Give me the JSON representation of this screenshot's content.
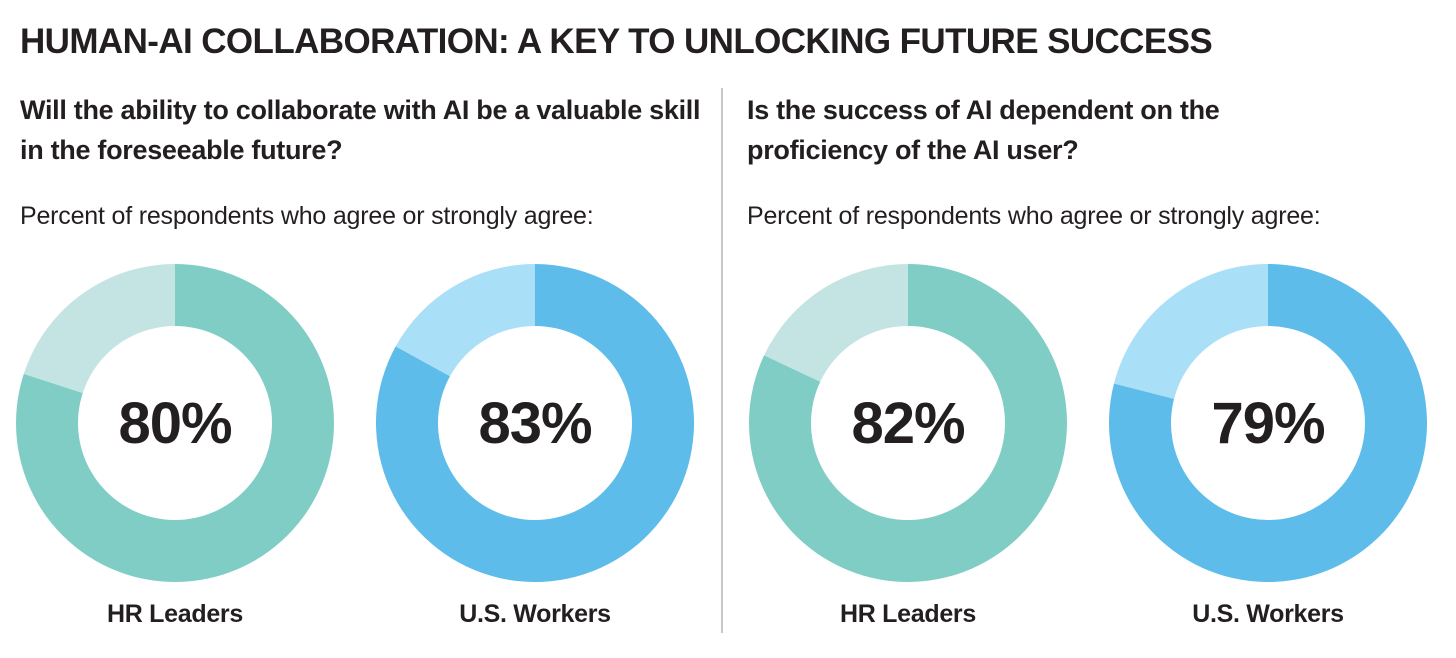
{
  "title": "HUMAN-AI COLLABORATION: A KEY TO UNLOCKING FUTURE SUCCESS",
  "colors": {
    "teal": "#80cdc6",
    "teal_light": "#c4e4e4",
    "blue": "#5ebcea",
    "blue_light": "#aadff8",
    "text": "#231f20"
  },
  "chart_data": [
    {
      "type": "pie",
      "title": "Will the ability to collaborate with AI be a valuable skill in the foreseeable future?",
      "subtitle": "Percent of respondents who agree or strongly agree:",
      "donuts": [
        {
          "category": "HR Leaders",
          "value": 80,
          "label": "80%",
          "color": "#80cdc6",
          "rest_color": "#c4e4e4"
        },
        {
          "category": "U.S. Workers",
          "value": 83,
          "label": "83%",
          "color": "#5ebcea",
          "rest_color": "#aadff8"
        }
      ]
    },
    {
      "type": "pie",
      "title": "Is the success of AI dependent on the proficiency of the AI user?",
      "subtitle": "Percent of respondents who agree or strongly agree:",
      "donuts": [
        {
          "category": "HR Leaders",
          "value": 82,
          "label": "82%",
          "color": "#80cdc6",
          "rest_color": "#c4e4e4"
        },
        {
          "category": "U.S. Workers",
          "value": 79,
          "label": "79%",
          "color": "#5ebcea",
          "rest_color": "#aadff8"
        }
      ]
    }
  ]
}
